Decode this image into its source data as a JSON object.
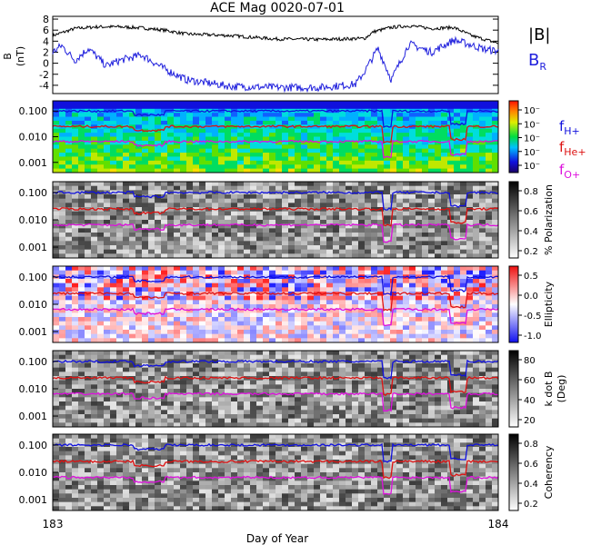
{
  "title": "ACE Mag 0020-07-01",
  "xaxis": {
    "label": "Day of Year",
    "start": "183",
    "end": "184",
    "range": [
      183,
      184
    ]
  },
  "colors": {
    "total_field": "#000000",
    "br": "#2020dd",
    "f_h": "#1010dd",
    "f_he": "#dd1010",
    "f_o": "#dd10dd"
  },
  "chart_data": [
    {
      "type": "line",
      "ylabel": "B",
      "yunit": "(nT)",
      "ylim": [
        -5.5,
        8.5
      ],
      "yticks": [
        "8",
        "6",
        "4",
        "2",
        "0",
        "-2",
        "-4"
      ],
      "ytick_values": [
        8,
        6,
        4,
        2,
        0,
        -2,
        -4
      ],
      "legend": [
        "|B|",
        "B",
        "R"
      ],
      "series": [
        {
          "name": "|B|",
          "x": [
            183.0,
            183.05,
            183.1,
            183.15,
            183.2,
            183.25,
            183.3,
            183.4,
            183.5,
            183.6,
            183.7,
            183.72,
            183.76,
            183.8,
            183.85,
            183.9,
            183.94,
            183.97,
            184.0
          ],
          "values": [
            5.0,
            6.3,
            6.6,
            6.6,
            6.4,
            6.0,
            5.3,
            5.0,
            4.4,
            4.3,
            4.5,
            5.7,
            6.5,
            6.8,
            6.3,
            6.5,
            5.0,
            4.3,
            3.6
          ]
        },
        {
          "name": "B R",
          "x": [
            183.0,
            183.02,
            183.05,
            183.08,
            183.12,
            183.15,
            183.2,
            183.25,
            183.3,
            183.4,
            183.5,
            183.6,
            183.68,
            183.7,
            183.73,
            183.76,
            183.8,
            183.85,
            183.9,
            183.94,
            183.97,
            184.0
          ],
          "values": [
            2.0,
            3.2,
            0.5,
            2.7,
            -0.5,
            0.5,
            1.5,
            -1.0,
            -3.0,
            -4.2,
            -4.4,
            -4.4,
            -3.8,
            -1.5,
            2.7,
            -3.0,
            3.5,
            2.0,
            4.2,
            3.3,
            2.5,
            2.2
          ]
        }
      ]
    },
    {
      "type": "heatmap",
      "ylabel": "",
      "colorbar_label": "",
      "colorbar_ticks": [
        "10⁻",
        "10⁻",
        "10⁻",
        "10⁻",
        "10⁻"
      ],
      "yticks": [
        "0.100",
        "0.010",
        "0.001"
      ],
      "ytick_values": [
        0.1,
        0.01,
        0.001
      ],
      "legend": [
        {
          "label": "f",
          "sub": "H+"
        },
        {
          "label": "f",
          "sub": "He+"
        },
        {
          "label": "f",
          "sub": "O+"
        }
      ]
    },
    {
      "type": "heatmap",
      "ylabel": "",
      "colorbar_label": "% Polarization",
      "colorbar_ticks": [
        "0.8",
        "0.6",
        "0.4",
        "0.2"
      ],
      "yticks": [
        "0.100",
        "0.010",
        "0.001"
      ],
      "ytick_values": [
        0.1,
        0.01,
        0.001
      ]
    },
    {
      "type": "heatmap",
      "ylabel": "",
      "colorbar_label": "Ellipticity",
      "colorbar_ticks": [
        "0.5",
        "0.0",
        "-0.5",
        "-1.0"
      ],
      "yticks": [
        "0.100",
        "0.010",
        "0.001"
      ],
      "ytick_values": [
        0.1,
        0.01,
        0.001
      ]
    },
    {
      "type": "heatmap",
      "ylabel": "",
      "colorbar_label": "k dot B",
      "colorbar_unit": "(Deg)",
      "colorbar_ticks": [
        "80",
        "60",
        "40",
        "20"
      ],
      "yticks": [
        "0.100",
        "0.010",
        "0.001"
      ],
      "ytick_values": [
        0.1,
        0.01,
        0.001
      ]
    },
    {
      "type": "heatmap",
      "ylabel": "",
      "colorbar_label": "Coherency",
      "colorbar_ticks": [
        "0.8",
        "0.6",
        "0.4",
        "0.2"
      ],
      "yticks": [
        "0.100",
        "0.010",
        "0.001"
      ],
      "ytick_values": [
        0.1,
        0.01,
        0.001
      ]
    }
  ]
}
